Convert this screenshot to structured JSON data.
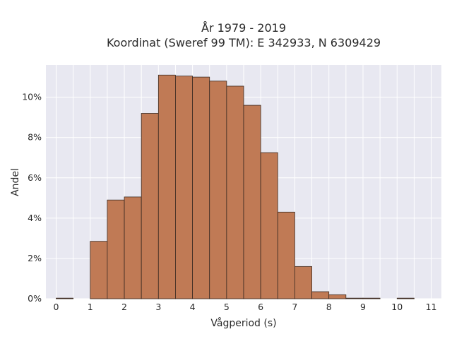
{
  "chart_data": {
    "type": "bar",
    "title": "År 1979 - 2019",
    "subtitle": "Koordinat (Sweref 99 TM): E 342933, N 6309429",
    "xlabel": "Vågperiod (s)",
    "ylabel": "Andel",
    "bin_width": 0.5,
    "bin_starts": [
      0,
      0.5,
      1,
      1.5,
      2,
      2.5,
      3,
      3.5,
      4,
      4.5,
      5,
      5.5,
      6,
      6.5,
      7,
      7.5,
      8,
      8.5,
      9,
      9.5,
      10,
      10.5
    ],
    "values": [
      0.03,
      0,
      2.85,
      4.9,
      5.05,
      9.2,
      11.1,
      11.05,
      11.0,
      10.8,
      10.55,
      9.6,
      7.25,
      4.3,
      1.6,
      0.35,
      0.2,
      0.03,
      0.03,
      0,
      0.03,
      0
    ],
    "xlim": [
      -0.3,
      11.3
    ],
    "ylim": [
      0,
      11.6
    ],
    "x_ticks": [
      "0",
      "1",
      "2",
      "3",
      "4",
      "5",
      "6",
      "7",
      "8",
      "9",
      "10",
      "11"
    ],
    "y_ticks": [
      "0%",
      "2%",
      "4%",
      "6%",
      "8%",
      "10%"
    ],
    "y_tick_values": [
      0,
      2,
      4,
      6,
      8,
      10
    ],
    "bar_color": "#c07a55",
    "bar_edge_color": "#3a2a22",
    "plot_background": "#e8e8f1",
    "grid": true,
    "legend": false
  }
}
